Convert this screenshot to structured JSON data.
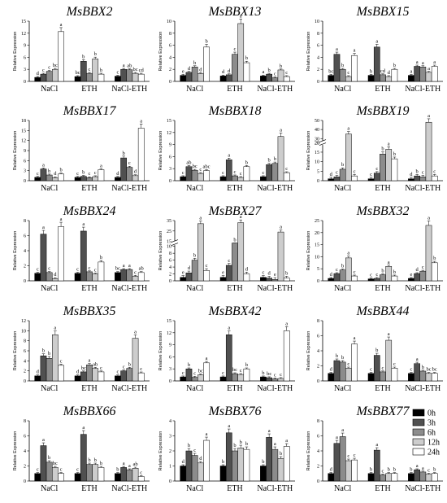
{
  "chart_data": {
    "type": "bar",
    "categories": [
      "NaCl",
      "ETH",
      "NaCl-ETH"
    ],
    "series_names": [
      "0h",
      "3h",
      "6h",
      "12h",
      "24h"
    ],
    "series_colors": [
      "#000000",
      "#505050",
      "#8c8c8c",
      "#cdcdcd",
      "#ffffff"
    ],
    "ylabel": "Relative Expression",
    "legend": {
      "position": "inside-right",
      "panel": 15
    },
    "panels": [
      {
        "title": "MsBBX2",
        "ylim": [
          0,
          15
        ],
        "yticks": [
          0,
          3,
          6,
          9,
          12,
          15
        ],
        "values": [
          [
            1.0,
            1.8,
            2.5,
            3.0,
            12.4
          ],
          [
            1.2,
            5.0,
            2.0,
            5.6,
            1.8
          ],
          [
            1.3,
            3.0,
            2.9,
            2.0,
            1.8
          ]
        ],
        "letters": [
          [
            "d",
            "c",
            "c",
            "bc",
            "a"
          ],
          [
            "bc",
            "b",
            "c",
            "b",
            "b"
          ],
          [
            "c",
            "a",
            "ab",
            "bc",
            "cd"
          ]
        ]
      },
      {
        "title": "MsBBX13",
        "ylim": [
          0,
          10
        ],
        "yticks": [
          0,
          2,
          4,
          6,
          8,
          10
        ],
        "values": [
          [
            1.0,
            1.5,
            2.4,
            1.3,
            5.7
          ],
          [
            0.9,
            1.1,
            4.5,
            9.6,
            3.1
          ],
          [
            0.9,
            1.2,
            0.6,
            1.9,
            0.8
          ]
        ],
        "letters": [
          [
            "e",
            "d",
            "b",
            "d",
            "b"
          ],
          [
            "d",
            "d",
            "c",
            "a",
            "b"
          ],
          [
            "a",
            "b",
            "c",
            "b",
            "c"
          ]
        ]
      },
      {
        "title": "MsBBX15",
        "ylim": [
          0,
          10
        ],
        "yticks": [
          0,
          2,
          4,
          6,
          8,
          10
        ],
        "values": [
          [
            1.0,
            4.5,
            2.0,
            0.8,
            4.3
          ],
          [
            1.0,
            5.7,
            1.1,
            0.8,
            2.0
          ],
          [
            1.0,
            2.5,
            2.4,
            1.5,
            2.5
          ]
        ],
        "letters": [
          [
            "bc",
            "a",
            "b",
            "c",
            "a"
          ],
          [
            "b",
            "a",
            "cd",
            "d",
            "b"
          ],
          [
            "a",
            "a",
            "a",
            "a",
            "a"
          ]
        ]
      },
      {
        "title": "MsBBX17",
        "ylim": [
          0,
          18
        ],
        "yticks": [
          0,
          3,
          6,
          9,
          12,
          15,
          18
        ],
        "values": [
          [
            1.0,
            3.5,
            1.7,
            0.9,
            2.0
          ],
          [
            1.0,
            1.3,
            0.9,
            1.2,
            3.3
          ],
          [
            1.0,
            6.8,
            4.0,
            1.5,
            15.7
          ]
        ],
        "letters": [
          [
            "c",
            "a",
            "b",
            "d",
            "b"
          ],
          [
            "c",
            "b",
            "c",
            "c",
            "a"
          ],
          [
            "d",
            "b",
            "c",
            "d",
            "a"
          ]
        ]
      },
      {
        "title": "MsBBX18",
        "ylim": [
          0,
          15
        ],
        "yticks": [
          0,
          3,
          6,
          9,
          12,
          15
        ],
        "values": [
          [
            1.0,
            3.5,
            2.6,
            1.8,
            2.5
          ],
          [
            1.0,
            5.2,
            1.2,
            0.8,
            3.5
          ],
          [
            1.0,
            4.0,
            4.3,
            11.0,
            2.0
          ]
        ],
        "letters": [
          [
            "c",
            "ab",
            "bc",
            "c",
            "abc"
          ],
          [
            "c",
            "a",
            "c",
            "c",
            "b"
          ],
          [
            "c",
            "b",
            "b",
            "a",
            "c"
          ]
        ]
      },
      {
        "title": "MsBBX19",
        "ylim": [
          0,
          50
        ],
        "yticks": [
          0,
          5,
          10,
          15,
          20,
          25,
          30,
          40,
          50
        ],
        "axis_break": [
          19,
          27
        ],
        "values": [
          [
            1.0,
            2.0,
            6.0,
            35.0,
            2.5
          ],
          [
            1.0,
            4.0,
            14.0,
            16.5,
            11.5
          ],
          [
            1.0,
            2.5,
            2.0,
            48.0,
            2.5
          ]
        ],
        "letters": [
          [
            "d",
            "c",
            "b",
            "a",
            "c"
          ],
          [
            "c",
            "c",
            "b",
            "a",
            "b"
          ],
          [
            "d",
            "b",
            "c",
            "a",
            "c"
          ]
        ]
      },
      {
        "title": "MsBBX24",
        "ylim": [
          0,
          8
        ],
        "yticks": [
          0,
          2,
          4,
          6,
          8
        ],
        "values": [
          [
            1.0,
            6.2,
            1.1,
            0.3,
            7.2
          ],
          [
            1.0,
            6.6,
            1.2,
            0.9,
            2.5
          ],
          [
            1.1,
            1.5,
            1.5,
            0.6,
            1.1
          ]
        ],
        "letters": [
          [
            "c",
            "a",
            "c",
            "d",
            "a"
          ],
          [
            "c",
            "a",
            "c",
            "c",
            "b"
          ],
          [
            "bc",
            "a",
            "a",
            "c",
            "ab"
          ]
        ]
      },
      {
        "title": "MsBBX27",
        "ylim": [
          0,
          35
        ],
        "yticks": [
          0,
          2,
          4,
          6,
          8,
          10,
          15,
          25,
          35
        ],
        "axis_break": [
          10.5,
          15
        ],
        "values": [
          [
            1.0,
            2.3,
            6.0,
            32.0,
            3.0
          ],
          [
            1.0,
            4.5,
            11.5,
            33.0,
            2.0
          ],
          [
            1.0,
            0.8,
            0.4,
            24.0,
            0.8
          ]
        ],
        "letters": [
          [
            "e",
            "d",
            "b",
            "a",
            "c"
          ],
          [
            "e",
            "c",
            "b",
            "a",
            "d"
          ],
          [
            "c",
            "d",
            "e",
            "a",
            "b"
          ]
        ]
      },
      {
        "title": "MsBBX32",
        "ylim": [
          0,
          25
        ],
        "yticks": [
          0,
          5,
          10,
          15,
          20,
          25
        ],
        "values": [
          [
            1.0,
            3.0,
            4.5,
            9.5,
            2.0
          ],
          [
            0.8,
            1.0,
            2.5,
            6.0,
            2.0
          ],
          [
            1.0,
            3.0,
            4.0,
            23.0,
            7.5
          ]
        ],
        "letters": [
          [
            "d",
            "c",
            "b",
            "a",
            "c"
          ],
          [
            "c",
            "c",
            "b",
            "a",
            "b"
          ],
          [
            "e",
            "d",
            "c",
            "a",
            "b"
          ]
        ]
      },
      {
        "title": "MsBBX35",
        "ylim": [
          0,
          12
        ],
        "yticks": [
          0,
          2,
          4,
          6,
          8,
          10,
          12
        ],
        "values": [
          [
            1.0,
            5.0,
            4.5,
            9.2,
            3.1
          ],
          [
            1.0,
            1.8,
            3.2,
            2.5,
            1.8
          ],
          [
            1.0,
            2.0,
            2.5,
            8.5,
            1.6
          ]
        ],
        "letters": [
          [
            "d",
            "b",
            "b",
            "a",
            "c"
          ],
          [
            "d",
            "bc",
            "a",
            "ab",
            "c"
          ],
          [
            "c",
            "c",
            "b",
            "a",
            "c"
          ]
        ]
      },
      {
        "title": "MsBBX42",
        "ylim": [
          0,
          15
        ],
        "yticks": [
          0,
          3,
          6,
          9,
          12,
          15
        ],
        "values": [
          [
            1.0,
            3.0,
            0.9,
            1.5,
            4.5
          ],
          [
            1.0,
            11.5,
            1.8,
            1.6,
            3.0
          ],
          [
            1.0,
            0.8,
            0.5,
            0.6,
            12.5
          ]
        ],
        "letters": [
          [
            "c",
            "b",
            "c",
            "bc",
            "a"
          ],
          [
            "c",
            "a",
            "bc",
            "c",
            "b"
          ],
          [
            "b",
            "bc",
            "c",
            "c",
            "a"
          ]
        ]
      },
      {
        "title": "MsBBX44",
        "ylim": [
          0,
          8
        ],
        "yticks": [
          0,
          2,
          4,
          6,
          8
        ],
        "values": [
          [
            1.0,
            2.7,
            2.5,
            1.7,
            4.9
          ],
          [
            1.0,
            3.4,
            1.2,
            5.4,
            1.7
          ],
          [
            1.0,
            2.3,
            1.3,
            1.0,
            1.0
          ]
        ],
        "letters": [
          [
            "d",
            "b",
            "b",
            "c",
            "a"
          ],
          [
            "c",
            "b",
            "c",
            "a",
            "c"
          ],
          [
            "c",
            "a",
            "b",
            "bc",
            "bc"
          ]
        ]
      },
      {
        "title": "MsBBX66",
        "ylim": [
          0,
          8
        ],
        "yticks": [
          0,
          2,
          4,
          6,
          8
        ],
        "values": [
          [
            1.0,
            4.7,
            2.5,
            1.8,
            1.0
          ],
          [
            1.0,
            6.2,
            2.2,
            2.2,
            1.8
          ],
          [
            1.0,
            1.8,
            1.5,
            1.7,
            0.6
          ]
        ],
        "letters": [
          [
            "c",
            "a",
            "b",
            "bc",
            "c"
          ],
          [
            "c",
            "a",
            "b",
            "b",
            "b"
          ],
          [
            "b",
            "a",
            "a",
            "ab",
            "c"
          ]
        ]
      },
      {
        "title": "MsBBX76",
        "ylim": [
          0,
          4
        ],
        "yticks": [
          0,
          1,
          2,
          3,
          4
        ],
        "values": [
          [
            1.0,
            2.0,
            1.7,
            1.2,
            2.7
          ],
          [
            1.0,
            3.2,
            2.0,
            2.2,
            2.1
          ],
          [
            1.0,
            2.9,
            2.1,
            1.5,
            2.3
          ]
        ],
        "letters": [
          [
            "d",
            "b",
            "c",
            "d",
            "a"
          ],
          [
            "b",
            "a",
            "b",
            "b",
            "b"
          ],
          [
            "b",
            "a",
            "a",
            "b",
            "a"
          ]
        ]
      },
      {
        "title": "MsBBX77",
        "ylim": [
          0,
          8
        ],
        "yticks": [
          0,
          2,
          4,
          6,
          8
        ],
        "values": [
          [
            1.0,
            5.0,
            5.9,
            2.7,
            2.8
          ],
          [
            1.0,
            4.1,
            0.8,
            1.0,
            1.0
          ],
          [
            1.0,
            1.5,
            1.2,
            0.9,
            1.0
          ]
        ],
        "letters": [
          [
            "d",
            "a",
            "a",
            "c",
            "c"
          ],
          [
            "b",
            "a",
            "c",
            "b",
            "b"
          ],
          [
            "b",
            "a",
            "a",
            "c",
            "b"
          ]
        ]
      }
    ]
  }
}
